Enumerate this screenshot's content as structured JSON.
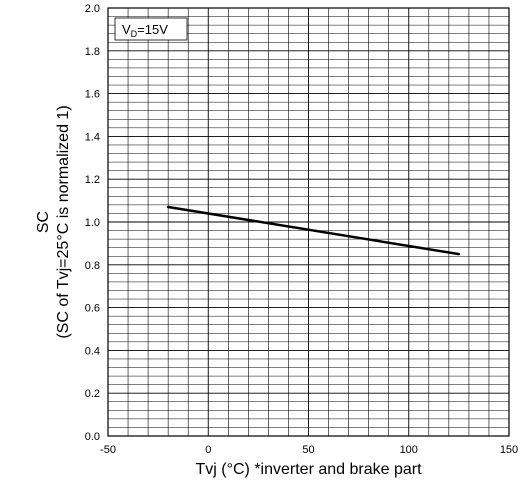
{
  "chart_data": {
    "type": "line",
    "xlabel": "Tvj (°C) *inverter and brake part",
    "ylabel_line1": "SC",
    "ylabel_line2": "(SC of Tvj=25°C is normalized 1)",
    "xlim": [
      -50,
      150
    ],
    "ylim": [
      0.0,
      2.0
    ],
    "x_ticks": [
      "-50",
      "0",
      "50",
      "100",
      "150"
    ],
    "y_ticks": [
      "0.0",
      "0.2",
      "0.4",
      "0.6",
      "0.8",
      "1.0",
      "1.2",
      "1.4",
      "1.6",
      "1.8",
      "2.0"
    ],
    "grid": true,
    "annotation": {
      "main": "V",
      "sub": "D",
      "rest": "=15V"
    },
    "series": [
      {
        "x": [
          -20,
          125
        ],
        "y": [
          1.07,
          0.85
        ],
        "color": "#000000"
      }
    ]
  }
}
